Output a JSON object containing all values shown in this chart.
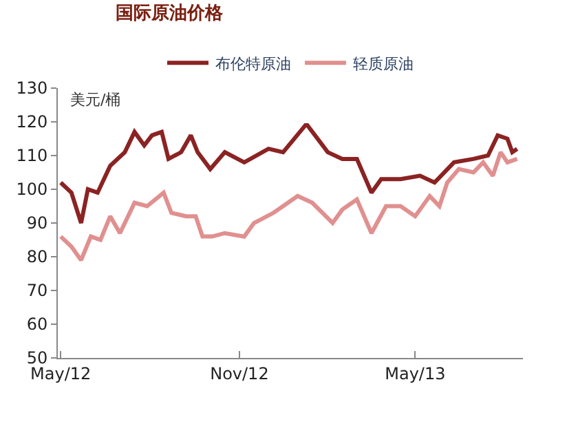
{
  "chart_data": {
    "type": "line",
    "title": "国际原油价格",
    "ylabel": "美元/桶",
    "series": [
      {
        "name": "布伦特原油",
        "color": "#8b2323",
        "x": [
          "2012-05-01",
          "2012-05-12",
          "2012-05-22",
          "2012-05-29",
          "2012-06-08",
          "2012-06-21",
          "2012-07-06",
          "2012-07-16",
          "2012-07-26",
          "2012-08-03",
          "2012-08-13",
          "2012-08-20",
          "2012-09-02",
          "2012-09-12",
          "2012-09-19",
          "2012-10-02",
          "2012-10-17",
          "2012-11-06",
          "2012-12-01",
          "2012-12-16",
          "2013-01-08",
          "2013-01-10",
          "2013-01-31",
          "2013-02-15",
          "2013-03-02",
          "2013-03-17",
          "2013-03-27",
          "2013-04-16",
          "2013-05-06",
          "2013-05-21",
          "2013-06-10",
          "2013-06-30",
          "2013-07-15",
          "2013-07-25",
          "2013-08-04",
          "2013-08-09",
          "2013-08-14"
        ],
        "values": [
          102,
          99,
          90,
          100,
          99,
          107,
          111,
          117,
          113,
          116,
          117,
          109,
          111,
          116,
          111,
          106,
          111,
          108,
          112,
          111,
          119,
          119,
          111,
          109,
          109,
          99,
          103,
          103,
          104,
          102,
          108,
          109,
          110,
          116,
          115,
          111,
          112
        ]
      },
      {
        "name": "轻质原油",
        "color": "#e0908f",
        "x": [
          "2012-05-01",
          "2012-05-12",
          "2012-05-22",
          "2012-06-01",
          "2012-06-11",
          "2012-06-21",
          "2012-07-01",
          "2012-07-16",
          "2012-07-29",
          "2012-08-15",
          "2012-08-23",
          "2012-09-07",
          "2012-09-17",
          "2012-09-24",
          "2012-10-04",
          "2012-10-17",
          "2012-11-06",
          "2012-11-16",
          "2012-12-06",
          "2012-12-16",
          "2012-12-31",
          "2013-01-15",
          "2013-02-05",
          "2013-02-15",
          "2013-03-02",
          "2013-03-17",
          "2013-04-01",
          "2013-04-16",
          "2013-05-01",
          "2013-05-16",
          "2013-05-26",
          "2013-06-03",
          "2013-06-15",
          "2013-06-30",
          "2013-07-10",
          "2013-07-20",
          "2013-07-28",
          "2013-08-04",
          "2013-08-14"
        ],
        "values": [
          86,
          83,
          79,
          86,
          85,
          92,
          87,
          96,
          95,
          99,
          93,
          92,
          92,
          86,
          86,
          87,
          86,
          90,
          93,
          95,
          98,
          96,
          90,
          94,
          97,
          87,
          95,
          95,
          92,
          98,
          95,
          102,
          106,
          105,
          108,
          104,
          111,
          108,
          109
        ]
      }
    ],
    "xlim": [
      "2012-04-28",
      "2013-08-20"
    ],
    "xticks": [
      {
        "value": "2012-05-01",
        "label": "May/12"
      },
      {
        "value": "2012-11-01",
        "label": "Nov/12"
      },
      {
        "value": "2013-05-01",
        "label": "May/13"
      }
    ],
    "ylim": [
      50,
      130
    ],
    "yticks": [
      50,
      60,
      70,
      80,
      90,
      100,
      110,
      120,
      130
    ],
    "legend": "top",
    "line_style": "solid",
    "marker": "none"
  }
}
